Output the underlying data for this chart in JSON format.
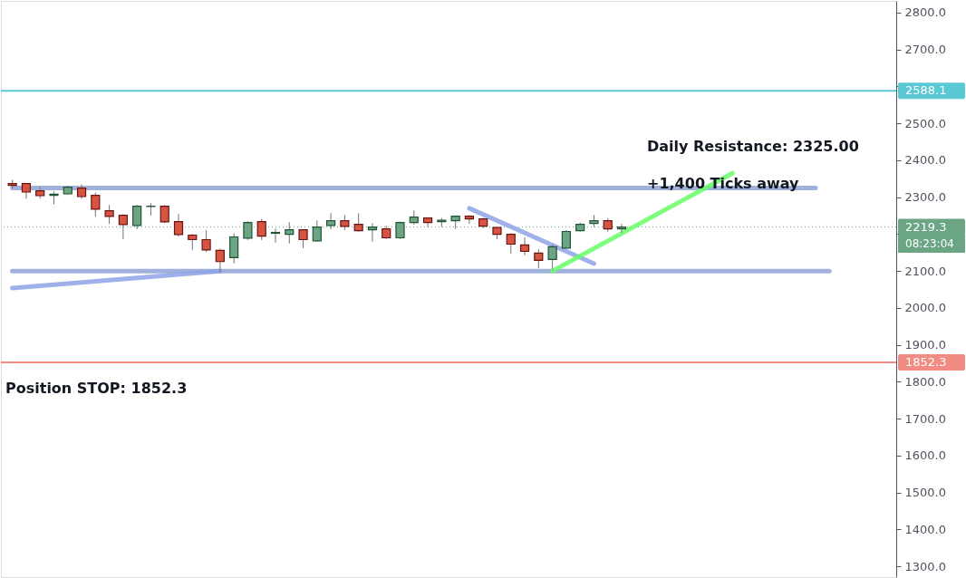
{
  "chart_data": {
    "type": "candlestick",
    "tick_labels": "y",
    "grid": false,
    "categories": [
      null,
      null,
      null,
      null,
      null,
      null,
      null,
      null,
      null,
      null,
      null,
      null,
      null,
      null,
      null,
      null,
      null,
      null,
      null,
      null,
      null,
      null,
      null,
      null,
      null,
      null,
      null,
      null,
      null,
      null,
      null,
      null,
      null,
      null,
      null,
      null,
      null,
      null,
      null,
      null,
      null,
      null,
      null,
      null,
      null,
      null,
      null,
      null,
      null,
      null,
      null,
      null,
      null,
      null,
      null,
      null,
      null,
      null,
      null,
      null,
      null,
      null,
      null,
      null
    ],
    "ohlc": [
      [
        2336.8,
        2346.5,
        2323.7,
        2331.9
      ],
      [
        2336.8,
        2336.8,
        2296.0,
        2313.9
      ],
      [
        2317.2,
        2327.8,
        2296.0,
        2304.1
      ],
      [
        2304.9,
        2315.5,
        2281.3,
        2308.2
      ],
      [
        2309.0,
        2330.2,
        2306.6,
        2327.0
      ],
      [
        2324.5,
        2335.1,
        2296.0,
        2301.7
      ],
      [
        2304.9,
        2312.3,
        2247.0,
        2267.4
      ],
      [
        2263.4,
        2278.8,
        2227.5,
        2247.9
      ],
      [
        2251.1,
        2254.4,
        2186.7,
        2225.8
      ],
      [
        2223.4,
        2278.8,
        2213.6,
        2275.6
      ],
      [
        2275.0,
        2283.7,
        2250.3,
        2275.6
      ],
      [
        2275.6,
        2278.8,
        2229.9,
        2233.2
      ],
      [
        2234.0,
        2254.4,
        2193.2,
        2198.9
      ],
      [
        2197.3,
        2200.5,
        2156.5,
        2185.1
      ],
      [
        2185.1,
        2210.3,
        2151.6,
        2157.3
      ],
      [
        2155.7,
        2160.6,
        2097.8,
        2125.5
      ],
      [
        2136.1,
        2202.2,
        2120.6,
        2192.4
      ],
      [
        2189.1,
        2234.8,
        2184.2,
        2231.5
      ],
      [
        2234.0,
        2241.3,
        2184.2,
        2194.8
      ],
      [
        2202.2,
        2215.2,
        2176.9,
        2204.6
      ],
      [
        2199.7,
        2232.4,
        2174.5,
        2211.9
      ],
      [
        2211.9,
        2211.9,
        2162.2,
        2185.1
      ],
      [
        2181.8,
        2237.3,
        2179.3,
        2219.3
      ],
      [
        2223.4,
        2256.8,
        2213.6,
        2236.4
      ],
      [
        2236.4,
        2251.9,
        2211.1,
        2220.9
      ],
      [
        2226.6,
        2256.8,
        2206.3,
        2209.5
      ],
      [
        2212.0,
        2229.9,
        2179.3,
        2219.3
      ],
      [
        2214.4,
        2222.6,
        2186.7,
        2190.0
      ],
      [
        2190.0,
        2234.0,
        2186.7,
        2231.5
      ],
      [
        2231.5,
        2264.2,
        2225.8,
        2246.2
      ],
      [
        2243.8,
        2243.8,
        2219.3,
        2231.5
      ],
      [
        2234.0,
        2243.8,
        2219.3,
        2237.3
      ],
      [
        2236.4,
        2248.7,
        2213.6,
        2248.7
      ],
      [
        2248.7,
        2251.9,
        2228.3,
        2241.3
      ],
      [
        2241.3,
        2244.6,
        2216.0,
        2221.8
      ],
      [
        2217.7,
        2217.7,
        2186.7,
        2199.7
      ],
      [
        2199.7,
        2203.0,
        2147.5,
        2172.8
      ],
      [
        2170.4,
        2191.6,
        2142.6,
        2153.2
      ],
      [
        2148.4,
        2158.9,
        2107.6,
        2128.8
      ],
      [
        2131.2,
        2171.2,
        2104.3,
        2165.5
      ],
      [
        2162.2,
        2210.3,
        2162.2,
        2207.1
      ],
      [
        2209.5,
        2231.5,
        2206.3,
        2226.6
      ],
      [
        2229.1,
        2251.9,
        2219.3,
        2236.4
      ],
      [
        2236.4,
        2242.1,
        2206.3,
        2214.4
      ],
      [
        2214.4,
        2227.5,
        2203.8,
        2219.3
      ],
      null,
      null,
      null,
      null,
      null,
      null,
      null,
      null,
      null,
      null,
      null,
      null,
      null,
      null,
      null,
      null,
      null,
      null,
      null
    ],
    "series": [
      {
        "type": "line",
        "color": "#8fa3d6",
        "values": [
          2325,
          null,
          null,
          null,
          null,
          null,
          null,
          null,
          null,
          null,
          null,
          null,
          null,
          null,
          null,
          null,
          null,
          null,
          null,
          null,
          null,
          null,
          null,
          null,
          null,
          null,
          null,
          null,
          null,
          null,
          null,
          null,
          null,
          null,
          null,
          null,
          null,
          null,
          null,
          null,
          null,
          null,
          null,
          null,
          null,
          null,
          null,
          null,
          null,
          null,
          null,
          null,
          null,
          null,
          null,
          null,
          null,
          null,
          2325,
          null,
          null,
          null,
          null,
          null
        ]
      },
      {
        "type": "line",
        "color": "#8fa3d6",
        "values": [
          2100,
          null,
          null,
          null,
          null,
          null,
          null,
          null,
          null,
          null,
          null,
          null,
          null,
          null,
          null,
          null,
          null,
          null,
          null,
          null,
          null,
          null,
          null,
          null,
          null,
          null,
          null,
          null,
          null,
          null,
          null,
          null,
          null,
          null,
          null,
          null,
          null,
          null,
          null,
          null,
          null,
          null,
          null,
          null,
          null,
          null,
          null,
          null,
          null,
          null,
          null,
          null,
          null,
          null,
          null,
          null,
          null,
          null,
          null,
          2100,
          null,
          null,
          null,
          null
        ]
      },
      {
        "type": "line",
        "color": "#8fa3e6",
        "values": [
          2054,
          null,
          null,
          null,
          null,
          null,
          null,
          null,
          null,
          null,
          null,
          null,
          null,
          null,
          null,
          2100,
          null,
          null,
          null,
          null,
          null,
          null,
          null,
          null,
          null,
          null,
          null,
          null,
          null,
          null,
          null,
          null,
          null,
          null,
          null,
          null,
          null,
          null,
          null,
          null,
          null,
          null,
          null,
          null,
          null,
          null,
          null,
          null,
          null,
          null,
          null,
          null,
          null,
          null,
          null,
          null,
          null,
          null,
          null,
          null,
          null,
          null,
          null,
          null
        ]
      },
      {
        "type": "line",
        "color": "#8fa3e6",
        "values": [
          null,
          null,
          null,
          null,
          null,
          null,
          null,
          null,
          null,
          null,
          null,
          null,
          null,
          null,
          null,
          null,
          null,
          null,
          null,
          null,
          null,
          null,
          null,
          null,
          null,
          null,
          null,
          null,
          null,
          null,
          null,
          null,
          null,
          2270,
          null,
          null,
          null,
          null,
          null,
          null,
          null,
          null,
          2120,
          null,
          null,
          null,
          null,
          null,
          null,
          null,
          null,
          null,
          null,
          null,
          null,
          null,
          null,
          null,
          null,
          null,
          null,
          null,
          null,
          null
        ]
      },
      {
        "type": "line",
        "color": "#66ff66",
        "values": [
          null,
          null,
          null,
          null,
          null,
          null,
          null,
          null,
          null,
          null,
          null,
          null,
          null,
          null,
          null,
          null,
          null,
          null,
          null,
          null,
          null,
          null,
          null,
          null,
          null,
          null,
          null,
          null,
          null,
          null,
          null,
          null,
          null,
          null,
          null,
          null,
          null,
          null,
          null,
          2100,
          null,
          null,
          null,
          null,
          null,
          null,
          null,
          null,
          null,
          null,
          null,
          null,
          2365,
          null,
          null,
          null,
          null,
          null,
          null,
          null,
          null,
          null,
          null,
          null
        ]
      }
    ],
    "ref_lines": [
      {
        "axis": "y",
        "value": 2588.1,
        "label": "2588.1",
        "color": "#5bc8d6"
      },
      {
        "axis": "y",
        "value": 2219.3,
        "label": "2219.3",
        "color": "#6ba583",
        "line_style": "dotted"
      },
      {
        "axis": "y",
        "value": 1852.3,
        "label": "1852.3",
        "color": "#f28b82"
      }
    ],
    "annotations": [
      "Daily Resistance: 2325.00",
      "+1,400 Ticks away",
      "08:23:04",
      "Position STOP: 1852.3"
    ],
    "ylim": [
      1270.8,
      2831.8
    ],
    "yticks": [
      {
        "value": 1300,
        "label": "1300.0"
      },
      {
        "value": 1400,
        "label": "1400.0"
      },
      {
        "value": 1500,
        "label": "1500.0"
      },
      {
        "value": 1600,
        "label": "1600.0"
      },
      {
        "value": 1700,
        "label": "1700.0"
      },
      {
        "value": 1800,
        "label": "1800.0"
      },
      {
        "value": 1900,
        "label": "1900.0"
      },
      {
        "value": 2000,
        "label": "2000.0"
      },
      {
        "value": 2100,
        "label": "2100.0"
      },
      {
        "value": 2200,
        "label": null
      },
      {
        "value": 2300,
        "label": "2300.0"
      },
      {
        "value": 2400,
        "label": "2400.0"
      },
      {
        "value": 2500,
        "label": "2500.0"
      },
      {
        "value": 2600,
        "label": null
      },
      {
        "value": 2700,
        "label": "2700.0"
      },
      {
        "value": 2800,
        "label": "2800.0"
      }
    ]
  }
}
